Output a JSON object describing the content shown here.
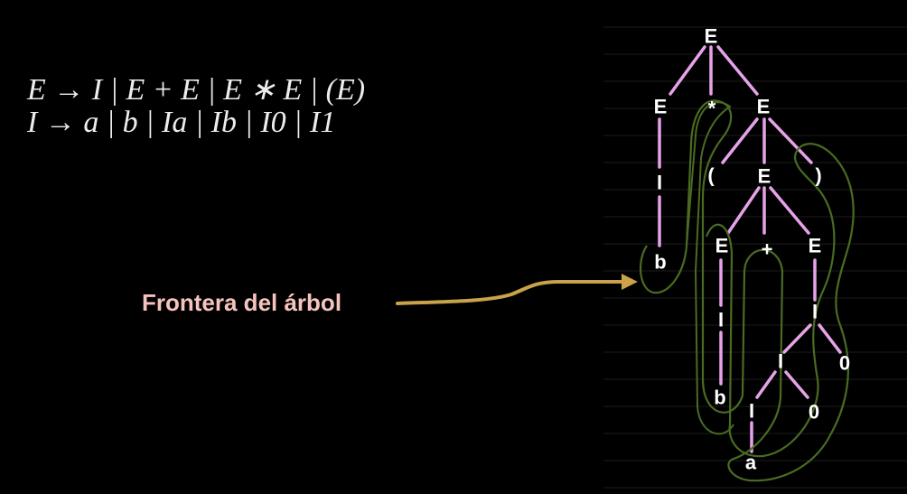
{
  "grammar": {
    "rule1": "E → I | E + E | E ∗ E | (E)",
    "rule2": "I → a | b | Ia | Ib | I0 | I1"
  },
  "annotation": {
    "label": "Frontera del árbol"
  },
  "tree": {
    "nodes": {
      "root": "E",
      "left_e": "E",
      "times": "*",
      "right_e": "E",
      "left_i": "I",
      "left_b": "b",
      "lparen": "(",
      "mid_e": "E",
      "rparen": ")",
      "inner_left_e": "E",
      "plus": "+",
      "inner_right_e": "E",
      "inner_left_i": "I",
      "inner_b": "b",
      "i_right": "I",
      "i_mid": "I",
      "zero_top": "0",
      "i_low": "I",
      "zero_low": "0",
      "leaf_a": "a"
    }
  },
  "colors": {
    "edge": "#e6a3e8",
    "frontier": "#4a6b22",
    "arrow": "#c9a24a",
    "label": "#f7c4bd"
  }
}
